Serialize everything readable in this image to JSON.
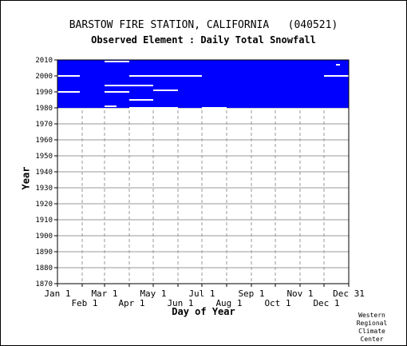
{
  "chart_data": {
    "type": "bar",
    "title": "BARSTOW FIRE STATION, CALIFORNIA   (040521)",
    "subtitle": "Observed Element : Daily Total Snowfall",
    "xlabel": "Day of Year",
    "ylabel": "Year",
    "credit": "Western Regional Climate Center",
    "ylim": [
      1870,
      2010
    ],
    "y_ticks": [
      1870,
      1880,
      1890,
      1900,
      1910,
      1920,
      1930,
      1940,
      1950,
      1960,
      1970,
      1980,
      1990,
      2000,
      2010
    ],
    "x_ticks_upper": [
      "Jan 1",
      "Mar 1",
      "May 1",
      "Jul 1",
      "Sep 1",
      "Nov 1",
      "Dec 31"
    ],
    "x_ticks_lower": [
      "Feb 1",
      "Apr 1",
      "Jun 1",
      "Aug 1",
      "Oct 1",
      "Dec 1"
    ],
    "x_tick_days": [
      1,
      32,
      60,
      91,
      121,
      152,
      182,
      213,
      244,
      274,
      305,
      335,
      366
    ],
    "grid": true,
    "data_fill_color": "#0000ff",
    "data_range": {
      "start_year": 1980,
      "end_year": 2010,
      "start_day": 1,
      "end_day": 366
    },
    "missing_segments": [
      {
        "year": 2009,
        "start_day": 60,
        "end_day": 91
      },
      {
        "year": 2007,
        "start_day": 350,
        "end_day": 355
      },
      {
        "year": 2000,
        "start_day": 1,
        "end_day": 29
      },
      {
        "year": 2000,
        "start_day": 91,
        "end_day": 182
      },
      {
        "year": 2000,
        "start_day": 335,
        "end_day": 366
      },
      {
        "year": 1994,
        "start_day": 60,
        "end_day": 91
      },
      {
        "year": 1994,
        "start_day": 91,
        "end_day": 121
      },
      {
        "year": 1991,
        "start_day": 121,
        "end_day": 152
      },
      {
        "year": 1990,
        "start_day": 1,
        "end_day": 29
      },
      {
        "year": 1990,
        "start_day": 60,
        "end_day": 91
      },
      {
        "year": 1985,
        "start_day": 91,
        "end_day": 121
      },
      {
        "year": 1981,
        "start_day": 60,
        "end_day": 75
      },
      {
        "year": 1980,
        "start_day": 91,
        "end_day": 152
      },
      {
        "year": 1980,
        "start_day": 182,
        "end_day": 213
      }
    ],
    "missing_color": "#ffffff"
  }
}
